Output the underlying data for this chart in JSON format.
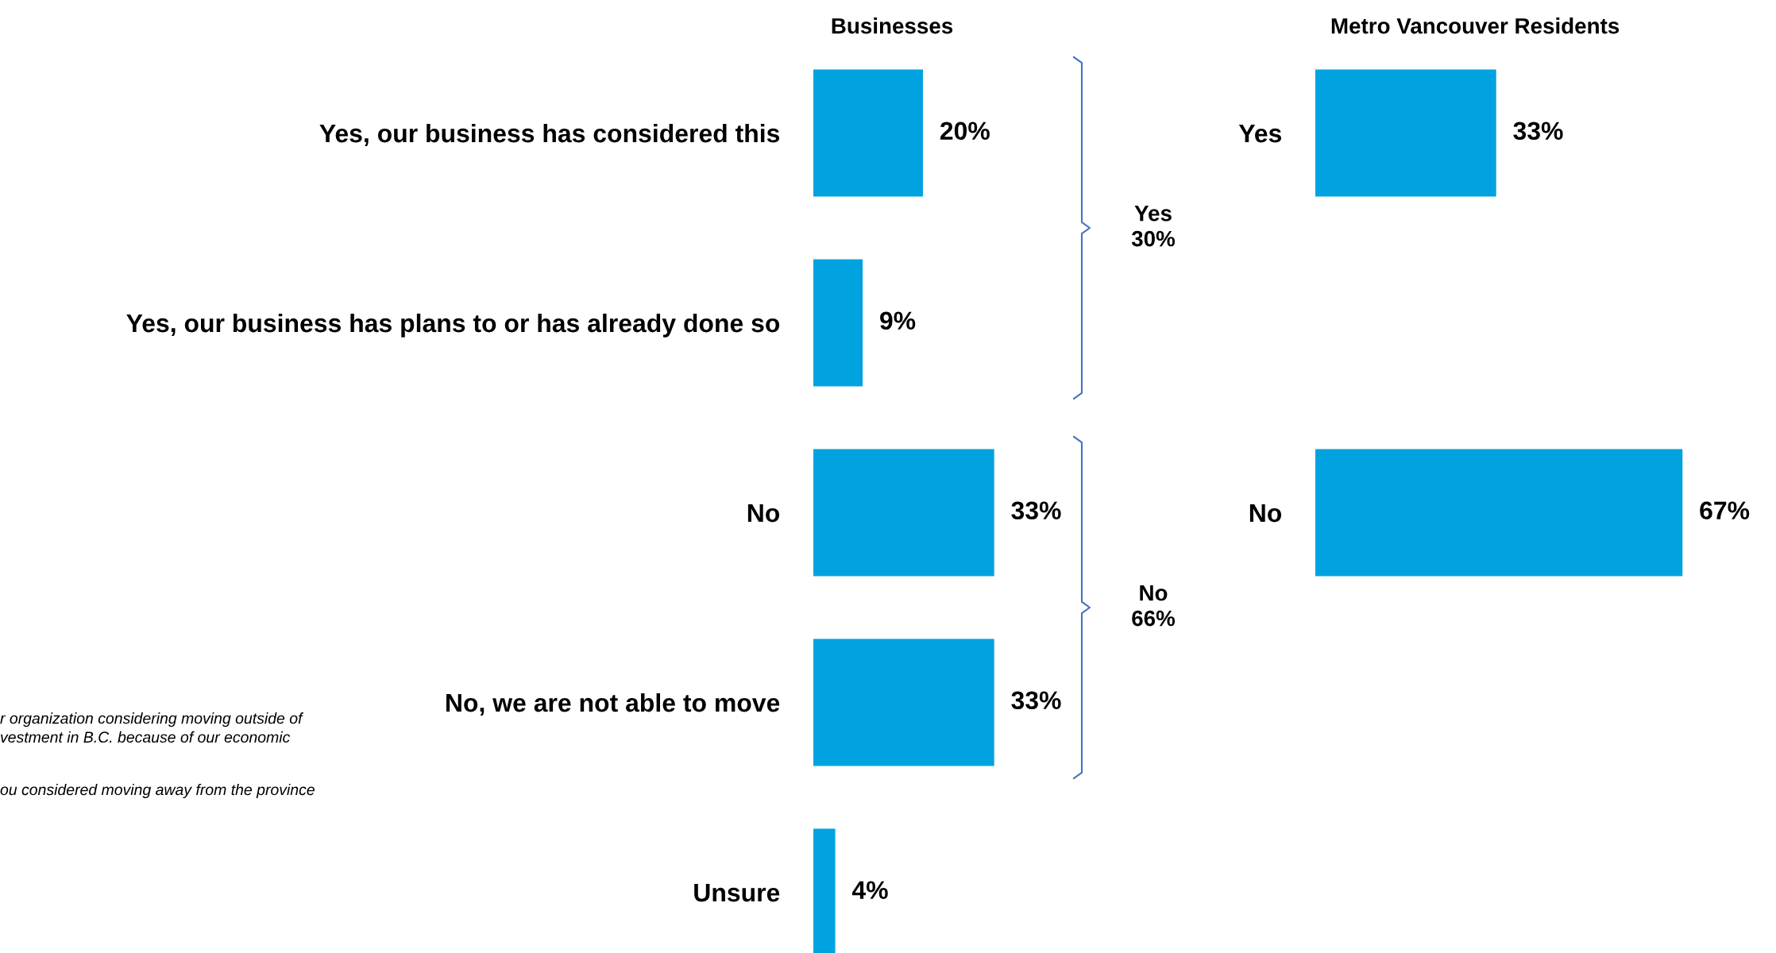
{
  "chart_data": [
    {
      "type": "bar",
      "orientation": "horizontal",
      "title": "Businesses",
      "categories": [
        "Yes, our business has considered this",
        "Yes, our business has plans to or has already done so",
        "No",
        "No, we are not able to move",
        "Unsure"
      ],
      "values": [
        20,
        9,
        33,
        33,
        4
      ],
      "value_labels": [
        "20%",
        "9%",
        "33%",
        "33%",
        "4%"
      ],
      "color": "#00a3e0",
      "annotations": [
        "Yes\n30%",
        "No\n66%",
        "r organization considering moving outside of\nvestment in B.C. because of our economic",
        "ou considered moving away from the province"
      ]
    },
    {
      "type": "bar",
      "orientation": "horizontal",
      "title": "Metro Vancouver Residents",
      "categories": [
        "Yes",
        "No"
      ],
      "values": [
        33,
        67
      ],
      "value_labels": [
        "33%",
        "67%"
      ],
      "color": "#00a3e0"
    }
  ]
}
